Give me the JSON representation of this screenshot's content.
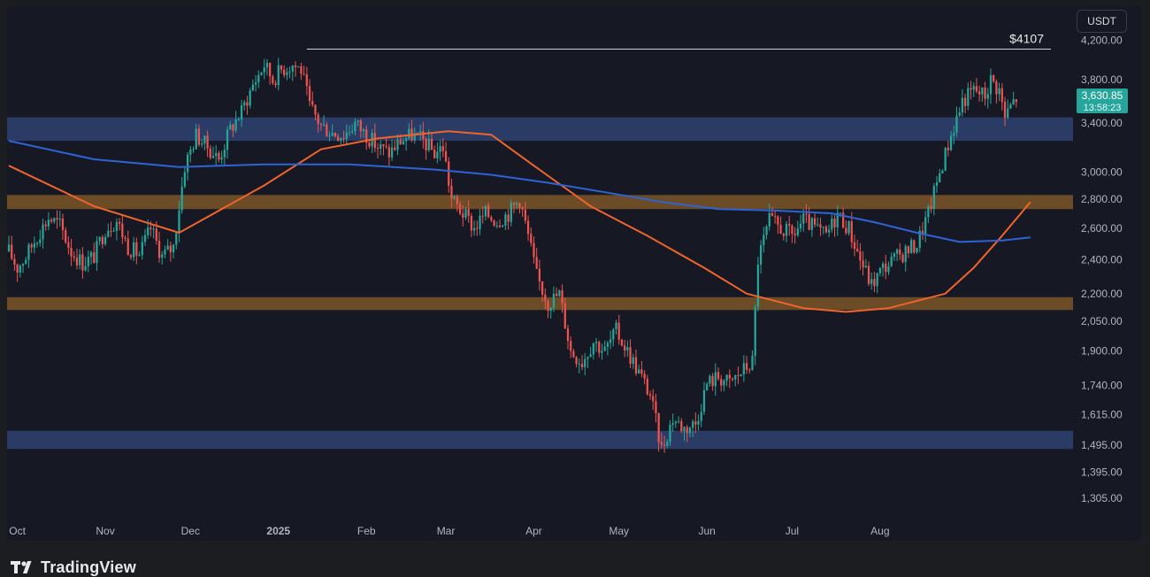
{
  "app": {
    "brand": "TradingView",
    "currency": "USDT"
  },
  "chart_data": {
    "type": "candlestick",
    "ylim": [
      1250,
      4400
    ],
    "y_scale": "log",
    "x_tick_labels": [
      "Oct",
      "Nov",
      "Dec",
      "2025",
      "Feb",
      "Mar",
      "Apr",
      "May",
      "Jun",
      "Jul",
      "Aug"
    ],
    "y_tick_labels": [
      4200,
      3800,
      3400,
      3000,
      2800,
      2600,
      2400,
      2200,
      2050,
      1900,
      1740,
      1615,
      1495,
      1395,
      1305
    ],
    "y_tick_texts": [
      "4,200.00",
      "3,800.00",
      "3,400.00",
      "3,000.00",
      "2,800.00",
      "2,600.00",
      "2,400.00",
      "2,200.00",
      "2,050.00",
      "1,900.00",
      "1,740.00",
      "1,615.00",
      "1,495.00",
      "1,395.00",
      "1,305.00"
    ],
    "last_price": {
      "value": 3630.85,
      "text": "3,630.85",
      "countdown": "13:58:23"
    },
    "annotations": [
      {
        "text": "$4107",
        "price": 4107,
        "from_day": 105,
        "to_day": 346
      }
    ],
    "zones": [
      {
        "color": "#2e4372",
        "top": 3450,
        "bottom": 3250
      },
      {
        "color": "#7a5628",
        "top": 2830,
        "bottom": 2730
      },
      {
        "color": "#7a5628",
        "top": 2180,
        "bottom": 2110
      },
      {
        "color": "#2e4372",
        "top": 1550,
        "bottom": 1480
      }
    ],
    "moving_averages": [
      {
        "color": "#f0642c",
        "points": [
          [
            0,
            3050
          ],
          [
            30,
            2750
          ],
          [
            60,
            2570
          ],
          [
            90,
            2900
          ],
          [
            110,
            3180
          ],
          [
            130,
            3270
          ],
          [
            155,
            3330
          ],
          [
            170,
            3300
          ],
          [
            185,
            3050
          ],
          [
            205,
            2750
          ],
          [
            225,
            2550
          ],
          [
            245,
            2350
          ],
          [
            260,
            2200
          ],
          [
            280,
            2120
          ],
          [
            295,
            2100
          ],
          [
            310,
            2120
          ],
          [
            330,
            2200
          ],
          [
            340,
            2350
          ],
          [
            350,
            2550
          ],
          [
            360,
            2780
          ]
        ]
      },
      {
        "color": "#2e63d6",
        "points": [
          [
            0,
            3250
          ],
          [
            30,
            3100
          ],
          [
            60,
            3040
          ],
          [
            90,
            3060
          ],
          [
            120,
            3060
          ],
          [
            150,
            3020
          ],
          [
            170,
            2980
          ],
          [
            190,
            2920
          ],
          [
            210,
            2850
          ],
          [
            230,
            2780
          ],
          [
            250,
            2730
          ],
          [
            270,
            2720
          ],
          [
            290,
            2700
          ],
          [
            305,
            2640
          ],
          [
            320,
            2570
          ],
          [
            335,
            2510
          ],
          [
            350,
            2520
          ],
          [
            360,
            2540
          ]
        ]
      }
    ],
    "price_path": [
      [
        0,
        2450
      ],
      [
        3,
        2350
      ],
      [
        6,
        2420
      ],
      [
        10,
        2550
      ],
      [
        14,
        2670
      ],
      [
        18,
        2620
      ],
      [
        22,
        2450
      ],
      [
        26,
        2380
      ],
      [
        30,
        2420
      ],
      [
        34,
        2600
      ],
      [
        38,
        2650
      ],
      [
        42,
        2480
      ],
      [
        46,
        2430
      ],
      [
        50,
        2600
      ],
      [
        54,
        2420
      ],
      [
        58,
        2480
      ],
      [
        62,
        3050
      ],
      [
        66,
        3300
      ],
      [
        70,
        3200
      ],
      [
        74,
        3100
      ],
      [
        78,
        3350
      ],
      [
        82,
        3500
      ],
      [
        86,
        3750
      ],
      [
        90,
        3950
      ],
      [
        93,
        3800
      ],
      [
        96,
        3900
      ],
      [
        100,
        3950
      ],
      [
        103,
        3900
      ],
      [
        106,
        3550
      ],
      [
        110,
        3380
      ],
      [
        114,
        3320
      ],
      [
        118,
        3300
      ],
      [
        122,
        3400
      ],
      [
        126,
        3300
      ],
      [
        130,
        3200
      ],
      [
        134,
        3150
      ],
      [
        138,
        3250
      ],
      [
        142,
        3300
      ],
      [
        146,
        3250
      ],
      [
        150,
        3150
      ],
      [
        153,
        3200
      ],
      [
        156,
        2800
      ],
      [
        160,
        2700
      ],
      [
        164,
        2600
      ],
      [
        168,
        2700
      ],
      [
        172,
        2650
      ],
      [
        176,
        2700
      ],
      [
        180,
        2800
      ],
      [
        183,
        2550
      ],
      [
        186,
        2300
      ],
      [
        190,
        2150
      ],
      [
        194,
        2200
      ],
      [
        198,
        1900
      ],
      [
        202,
        1850
      ],
      [
        206,
        1950
      ],
      [
        210,
        1900
      ],
      [
        214,
        2000
      ],
      [
        218,
        1900
      ],
      [
        222,
        1800
      ],
      [
        226,
        1700
      ],
      [
        230,
        1480
      ],
      [
        234,
        1600
      ],
      [
        238,
        1560
      ],
      [
        242,
        1580
      ],
      [
        246,
        1750
      ],
      [
        250,
        1780
      ],
      [
        254,
        1750
      ],
      [
        258,
        1800
      ],
      [
        262,
        1850
      ],
      [
        264,
        2400
      ],
      [
        268,
        2650
      ],
      [
        272,
        2600
      ],
      [
        276,
        2550
      ],
      [
        280,
        2650
      ],
      [
        284,
        2600
      ],
      [
        288,
        2550
      ],
      [
        292,
        2700
      ],
      [
        296,
        2600
      ],
      [
        300,
        2400
      ],
      [
        304,
        2250
      ],
      [
        308,
        2350
      ],
      [
        312,
        2400
      ],
      [
        316,
        2450
      ],
      [
        320,
        2500
      ],
      [
        324,
        2700
      ],
      [
        328,
        3000
      ],
      [
        332,
        3300
      ],
      [
        336,
        3600
      ],
      [
        340,
        3700
      ],
      [
        344,
        3650
      ],
      [
        346,
        3800
      ],
      [
        349,
        3700
      ],
      [
        351,
        3450
      ],
      [
        353,
        3550
      ],
      [
        355,
        3630
      ]
    ],
    "date_axis": {
      "start_day": 0,
      "end_day": 375
    }
  }
}
